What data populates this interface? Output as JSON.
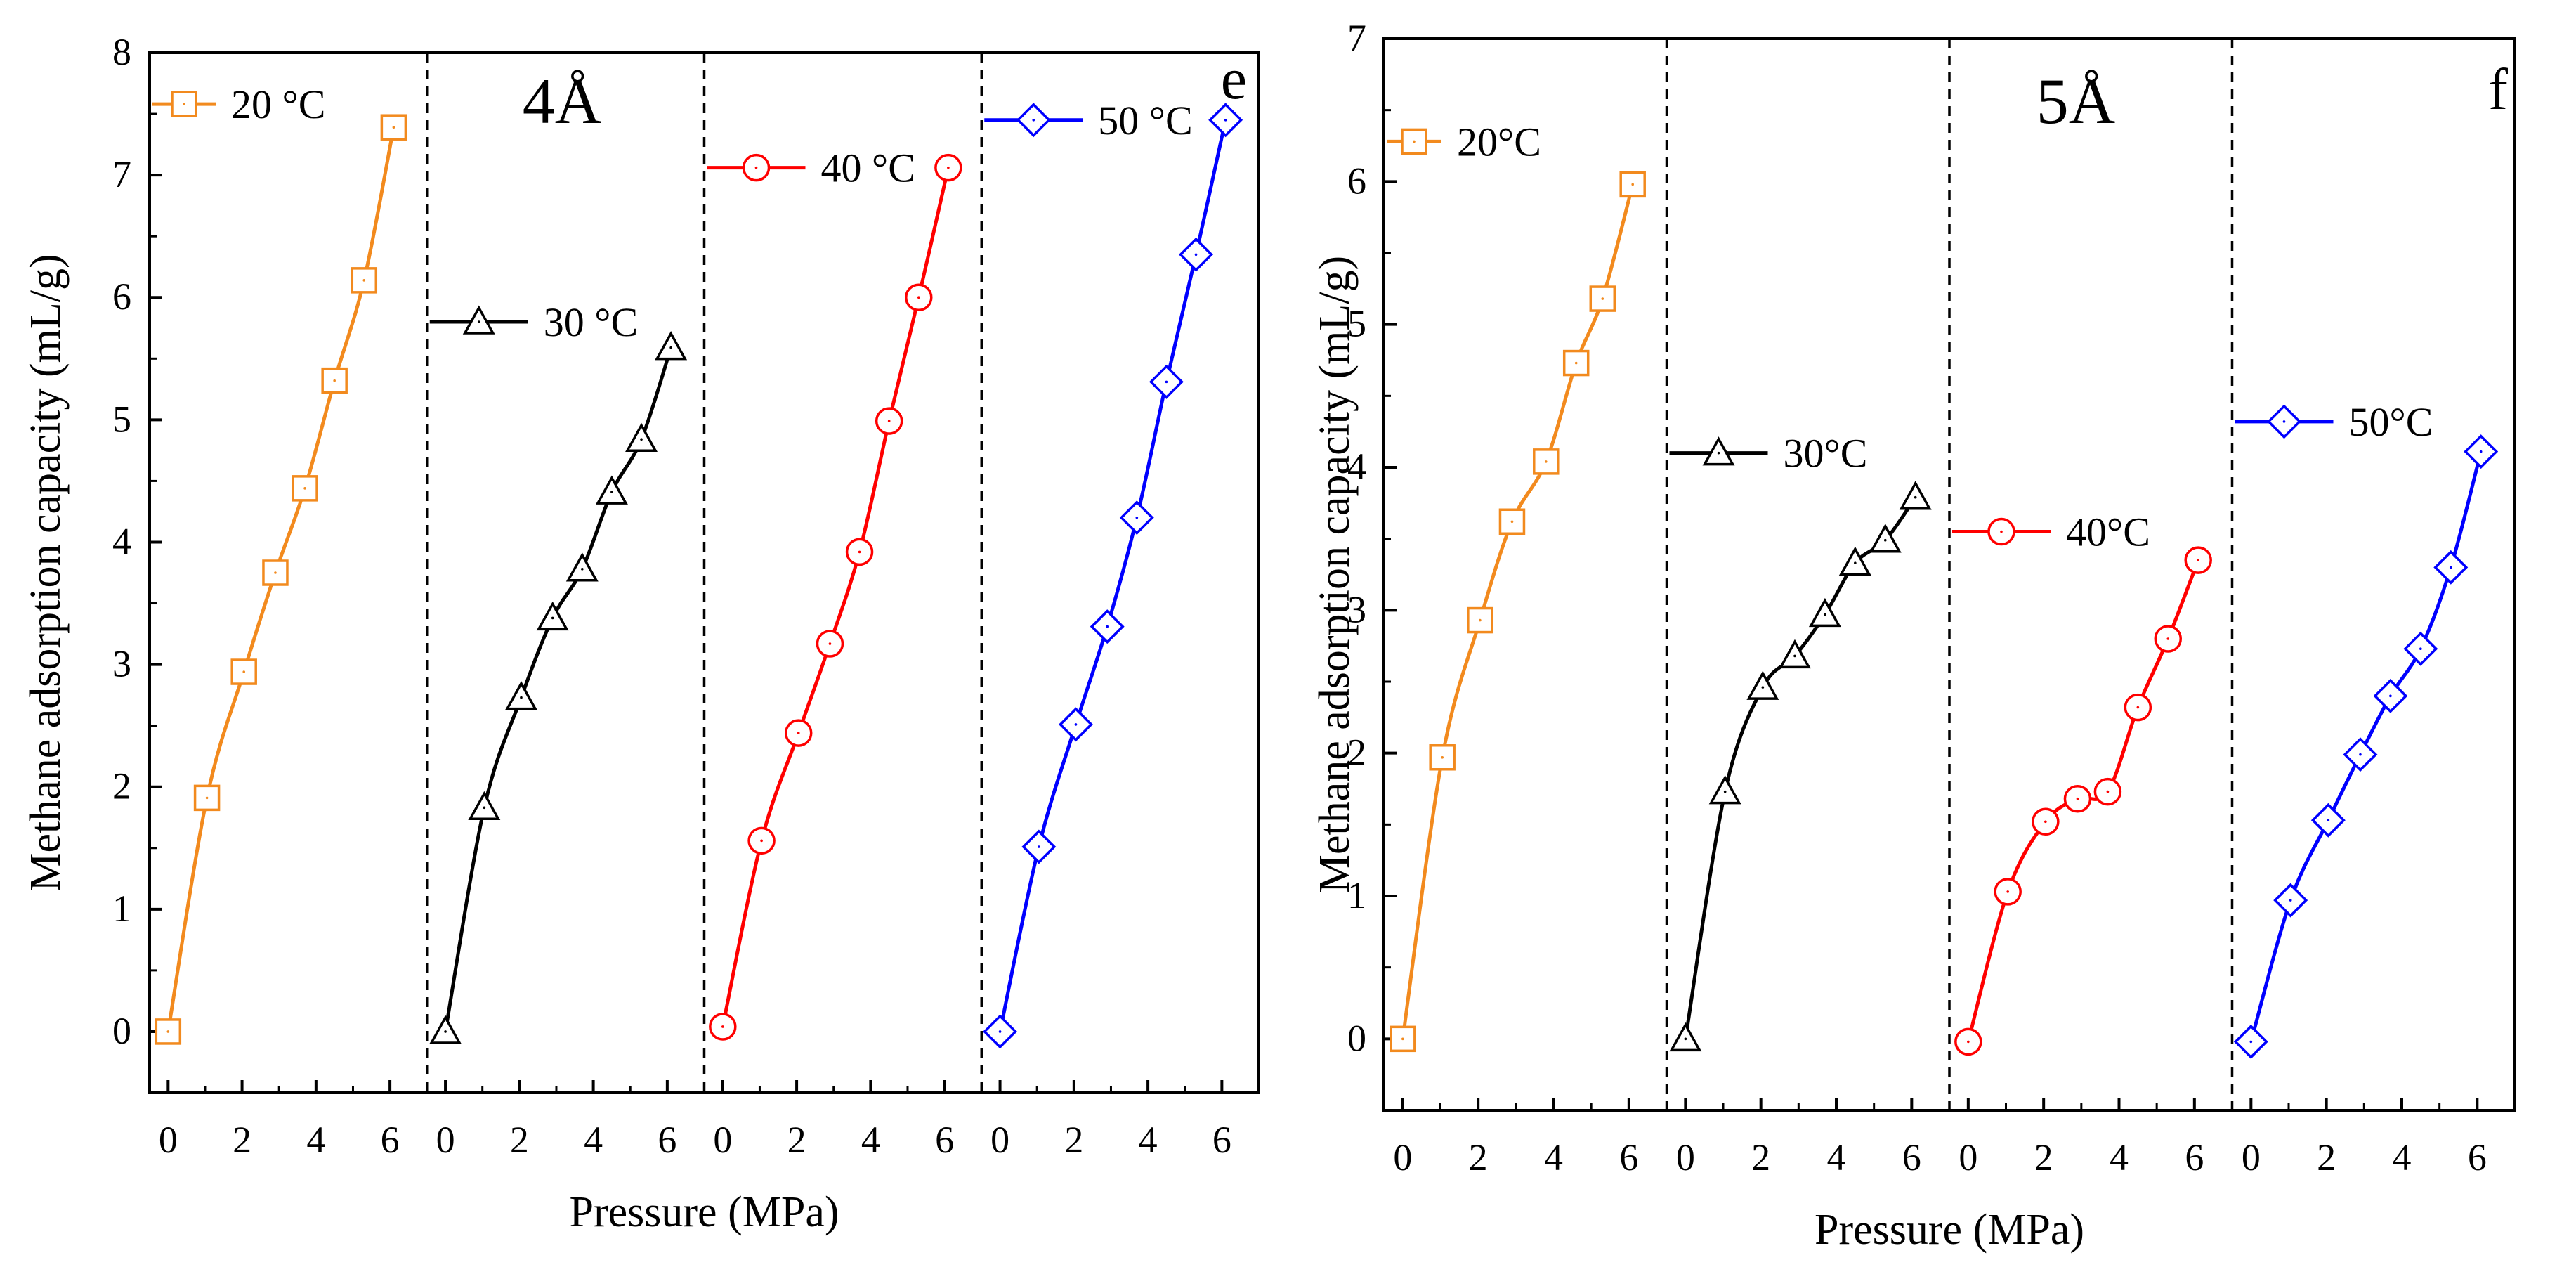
{
  "chart_data": [
    {
      "type": "line",
      "panel_label": "e",
      "pore_label": "4Å",
      "ylabel": "Methane adsorption capacity (mL/g)",
      "xlabel": "Pressure (MPa)",
      "ylim": [
        -0.5,
        8
      ],
      "yticks": [
        "0",
        "1",
        "2",
        "3",
        "4",
        "5",
        "6",
        "7",
        "8"
      ],
      "xlim": [
        -0.5,
        7
      ],
      "xticks": [
        "0",
        "2",
        "4",
        "6"
      ],
      "grid": false,
      "subpanels": [
        {
          "name": "20 °C",
          "color": "#F28A1E",
          "marker": "square",
          "x": [
            0,
            1.05,
            2.05,
            2.9,
            3.7,
            4.5,
            5.3,
            6.1
          ],
          "y": [
            0,
            1.91,
            2.94,
            3.75,
            4.44,
            5.32,
            6.14,
            7.39
          ],
          "legend_y": 7.58
        },
        {
          "name": "30 °C",
          "color": "#000000",
          "marker": "triangle",
          "x": [
            0,
            1.05,
            2.05,
            2.9,
            3.7,
            4.5,
            5.3,
            6.1
          ],
          "y": [
            0,
            1.83,
            2.73,
            3.38,
            3.78,
            4.41,
            4.84,
            5.59
          ],
          "legend_y": 5.8
        },
        {
          "name": "40 °C",
          "color": "#FF0000",
          "marker": "circle",
          "x": [
            0,
            1.05,
            2.05,
            2.9,
            3.7,
            4.5,
            5.3,
            6.1
          ],
          "y": [
            0.04,
            1.56,
            2.44,
            3.17,
            3.92,
            4.99,
            6.0,
            7.06
          ],
          "legend_y": 7.06
        },
        {
          "name": "50 °C",
          "color": "#0000FF",
          "marker": "diamond",
          "x": [
            0,
            1.05,
            2.05,
            2.9,
            3.7,
            4.5,
            5.3,
            6.1
          ],
          "y": [
            0,
            1.51,
            2.51,
            3.31,
            4.2,
            5.31,
            6.35,
            7.45
          ],
          "legend_y": 7.45
        }
      ]
    },
    {
      "type": "line",
      "panel_label": "f",
      "pore_label": "5Å",
      "ylabel": "Methane adsorption capacity (mL/g)",
      "xlabel": "Pressure (MPa)",
      "ylim": [
        -0.5,
        7
      ],
      "yticks": [
        "0",
        "1",
        "2",
        "3",
        "4",
        "5",
        "6",
        "7"
      ],
      "xlim": [
        -0.5,
        7
      ],
      "xticks": [
        "0",
        "2",
        "4",
        "6"
      ],
      "grid": false,
      "subpanels": [
        {
          "name": "20°C",
          "color": "#F28A1E",
          "marker": "square",
          "x": [
            0,
            1.05,
            2.05,
            2.9,
            3.8,
            4.6,
            5.3,
            6.1
          ],
          "y": [
            0,
            1.97,
            2.93,
            3.62,
            4.04,
            4.73,
            5.18,
            5.98
          ],
          "legend_y": 6.28
        },
        {
          "name": "30°C",
          "color": "#000000",
          "marker": "triangle",
          "x": [
            0,
            1.05,
            2.05,
            2.9,
            3.7,
            4.5,
            5.3,
            6.1
          ],
          "y": [
            0,
            1.73,
            2.46,
            2.68,
            2.97,
            3.33,
            3.49,
            3.79
          ],
          "legend_y": 4.1
        },
        {
          "name": "40°C",
          "color": "#FF0000",
          "marker": "circle",
          "x": [
            0,
            1.05,
            2.05,
            2.9,
            3.7,
            4.5,
            5.3,
            6.1
          ],
          "y": [
            -0.02,
            1.03,
            1.52,
            1.68,
            1.73,
            2.32,
            2.8,
            3.35
          ],
          "legend_y": 3.55
        },
        {
          "name": "50°C",
          "color": "#0000FF",
          "marker": "diamond",
          "x": [
            0,
            1.05,
            2.05,
            2.9,
            3.7,
            4.5,
            5.3,
            6.1
          ],
          "y": [
            -0.02,
            0.97,
            1.53,
            1.99,
            2.4,
            2.73,
            3.3,
            4.11
          ],
          "legend_y": 4.32
        }
      ]
    }
  ]
}
